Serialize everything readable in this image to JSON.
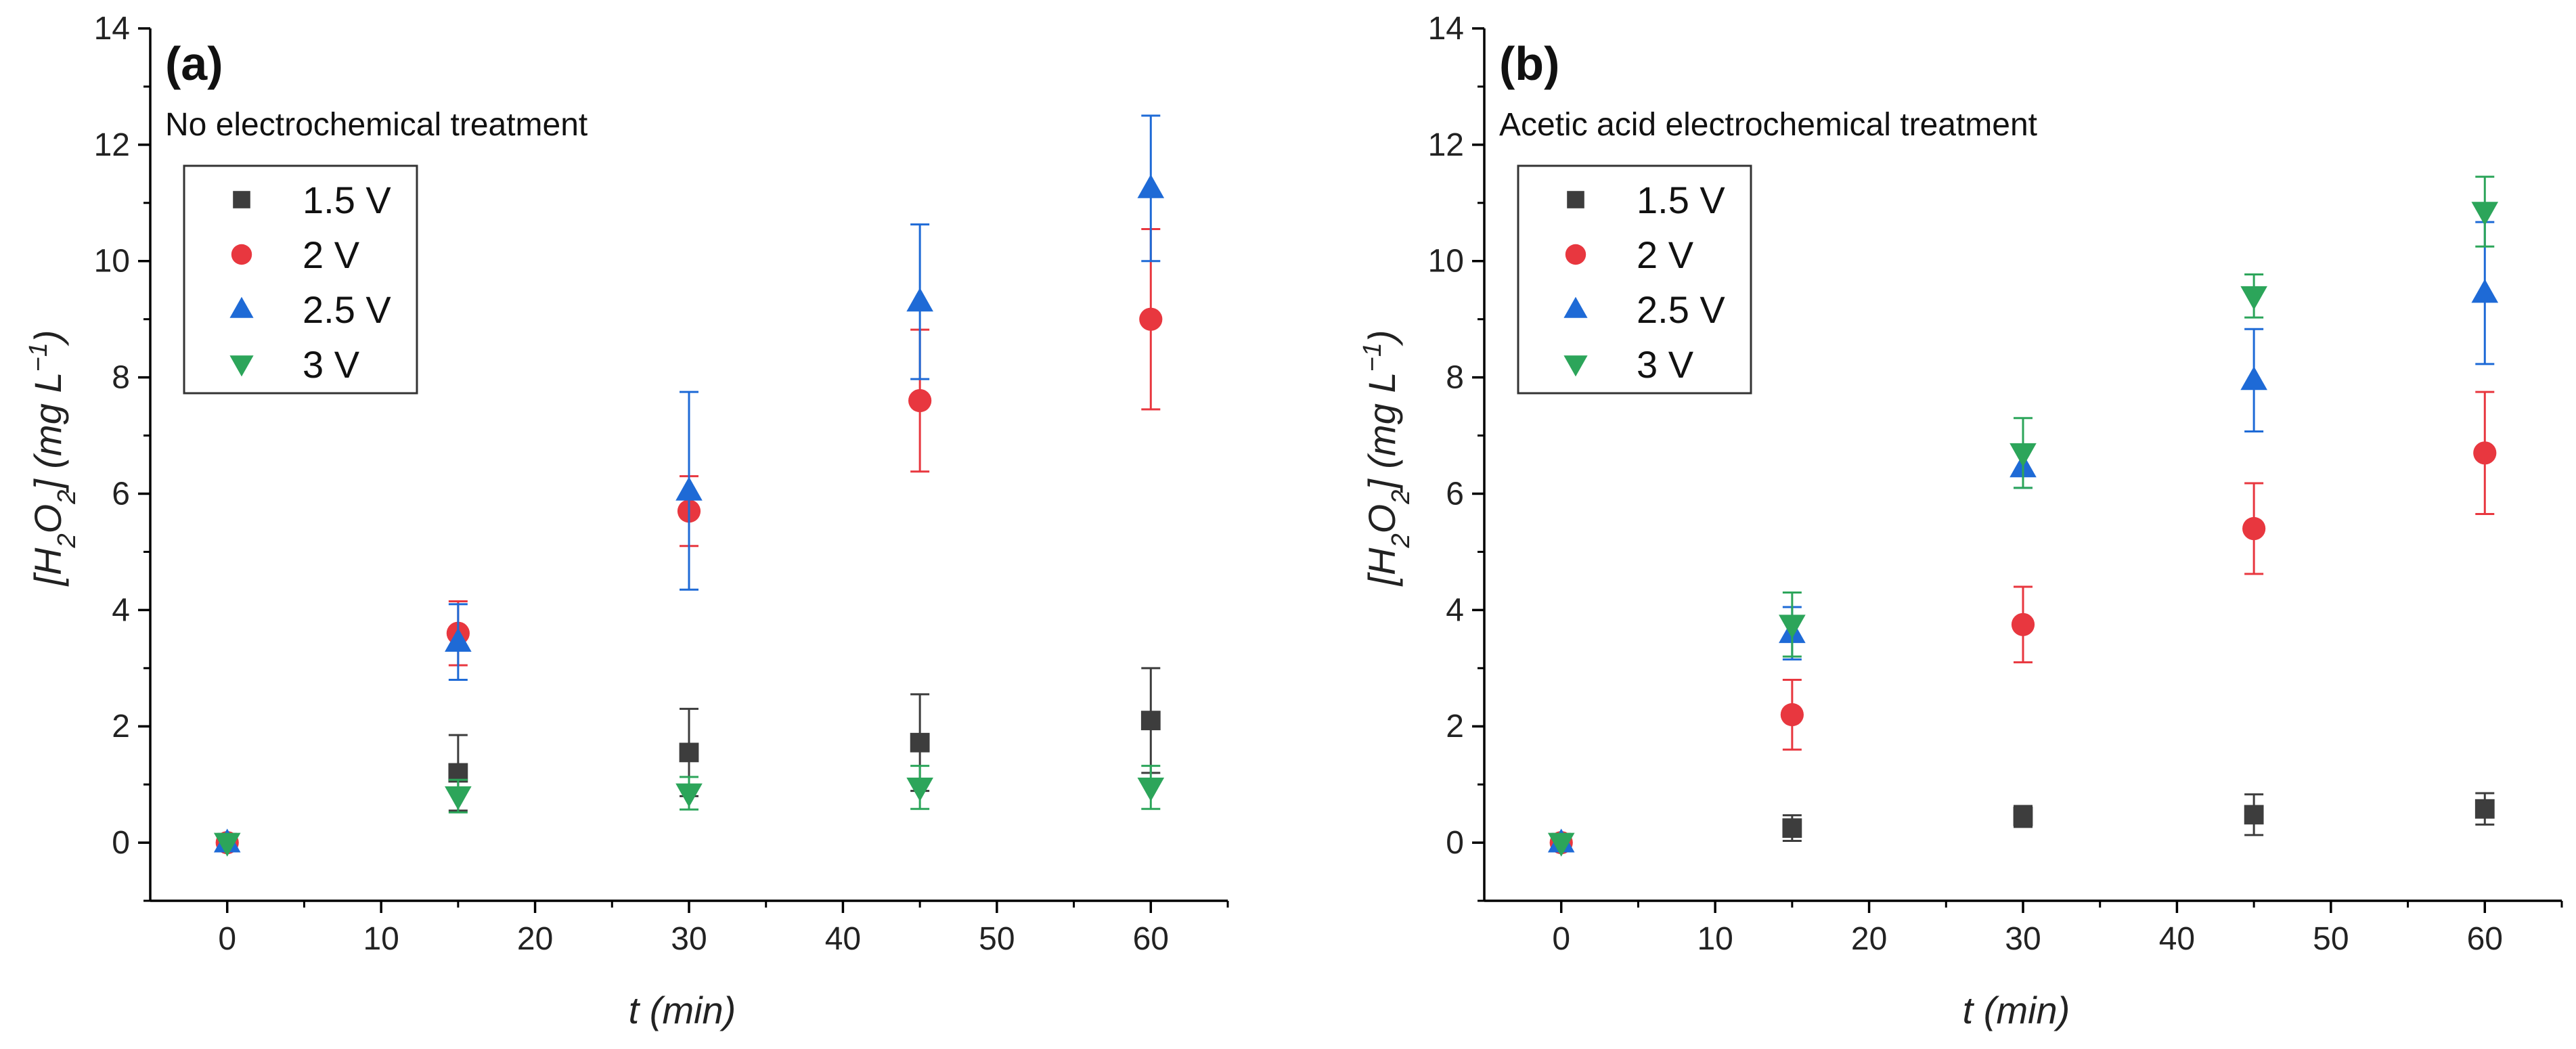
{
  "colors": {
    "1.5 V": "#3d3d3d",
    "2 V": "#e8373f",
    "2.5 V": "#1e6ad6",
    "3 V": "#2ca55a"
  },
  "chart_data": [
    {
      "type": "scatter",
      "panel_label": "(a)",
      "subtitle": "No electrochemical treatment",
      "xlabel": "t (min)",
      "ylabel_parts": [
        "[H",
        "2",
        "O",
        "2",
        "] (mg L",
        "−1",
        ")"
      ],
      "xlim": [
        -5,
        65
      ],
      "ylim": [
        -1,
        14
      ],
      "xticks": [
        0,
        10,
        20,
        30,
        40,
        50,
        60
      ],
      "yticks": [
        0,
        2,
        4,
        6,
        8,
        10,
        12,
        14
      ],
      "grid": false,
      "legend": "top-left",
      "x": [
        0,
        15,
        30,
        45,
        60
      ],
      "series": [
        {
          "name": "1.5 V",
          "marker": "square",
          "values": [
            0,
            1.2,
            1.55,
            1.72,
            2.1
          ],
          "error": [
            0,
            0.65,
            0.75,
            0.83,
            0.9
          ]
        },
        {
          "name": "2 V",
          "marker": "circle",
          "values": [
            0,
            3.6,
            5.7,
            7.6,
            9.0
          ],
          "error": [
            0,
            0.55,
            0.6,
            1.22,
            1.55
          ]
        },
        {
          "name": "2.5 V",
          "marker": "triangle-up",
          "values": [
            0,
            3.45,
            6.05,
            9.3,
            11.25
          ],
          "error": [
            0,
            0.65,
            1.7,
            1.33,
            1.25
          ]
        },
        {
          "name": "3 V",
          "marker": "triangle-down",
          "values": [
            0,
            0.8,
            0.85,
            0.95,
            0.95
          ],
          "error": [
            0,
            0.28,
            0.28,
            0.37,
            0.37
          ]
        }
      ]
    },
    {
      "type": "scatter",
      "panel_label": "(b)",
      "subtitle": "Acetic acid electrochemical treatment",
      "xlabel": "t (min)",
      "ylabel_parts": [
        "[H",
        "2",
        "O",
        "2",
        "] (mg L",
        "−1",
        ")"
      ],
      "xlim": [
        -5,
        65
      ],
      "ylim": [
        -1,
        14
      ],
      "xticks": [
        0,
        10,
        20,
        30,
        40,
        50,
        60
      ],
      "yticks": [
        0,
        2,
        4,
        6,
        8,
        10,
        12,
        14
      ],
      "grid": false,
      "legend": "top-left",
      "x": [
        0,
        15,
        30,
        45,
        60
      ],
      "series": [
        {
          "name": "1.5 V",
          "marker": "square",
          "values": [
            0,
            0.25,
            0.45,
            0.48,
            0.58
          ],
          "error": [
            0,
            0.22,
            0.18,
            0.35,
            0.27
          ]
        },
        {
          "name": "2 V",
          "marker": "circle",
          "values": [
            0,
            2.2,
            3.75,
            5.4,
            6.7
          ],
          "error": [
            0,
            0.6,
            0.65,
            0.78,
            1.05
          ]
        },
        {
          "name": "2.5 V",
          "marker": "triangle-up",
          "values": [
            0,
            3.6,
            6.45,
            7.95,
            9.45
          ],
          "error": [
            0,
            0.45,
            0.35,
            0.88,
            1.22
          ]
        },
        {
          "name": "3 V",
          "marker": "triangle-down",
          "values": [
            0,
            3.75,
            6.7,
            9.4,
            10.85
          ],
          "error": [
            0,
            0.55,
            0.6,
            0.37,
            0.6
          ]
        }
      ]
    }
  ]
}
